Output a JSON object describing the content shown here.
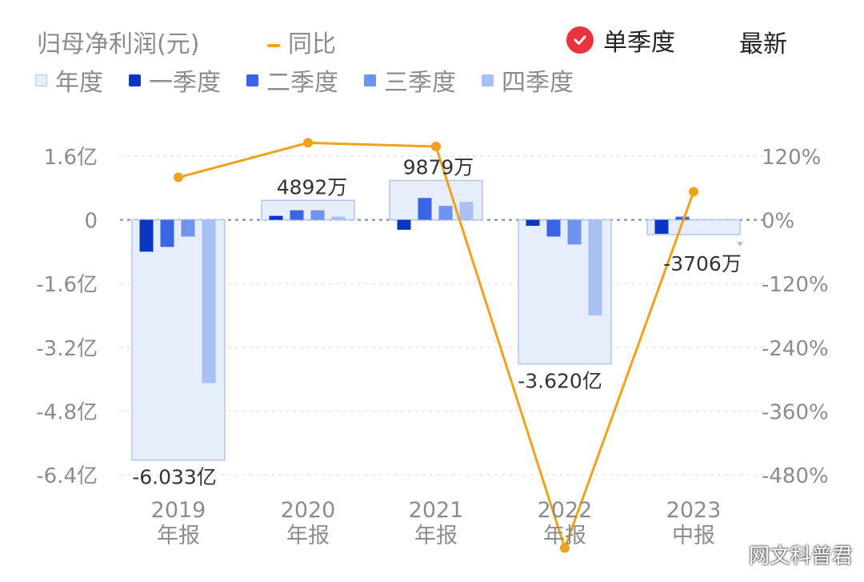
{
  "header": {
    "title": "归母净利润(元)",
    "yoy_legend": "同比",
    "toggle_label": "单季度",
    "latest_label": "最新"
  },
  "legend": [
    {
      "label": "年度",
      "color": "#e6edfb"
    },
    {
      "label": "一季度",
      "color": "#0b35c4"
    },
    {
      "label": "二季度",
      "color": "#3a66e6"
    },
    {
      "label": "三季度",
      "color": "#6f94ef"
    },
    {
      "label": "四季度",
      "color": "#a9c0f5"
    }
  ],
  "watermark": "网文科普君",
  "chart_data": {
    "type": "bar",
    "categories": [
      [
        "2019",
        "年报"
      ],
      [
        "2020",
        "年报"
      ],
      [
        "2021",
        "年报"
      ],
      [
        "2022",
        "年报"
      ],
      [
        "2023",
        "中报"
      ]
    ],
    "annual": {
      "name": "年度",
      "values": [
        -6.033,
        0.4892,
        0.9879,
        -3.62,
        -0.3706
      ],
      "labels": [
        "-6.033亿",
        "4892万",
        "9879万",
        "-3.620亿",
        "-3706万"
      ]
    },
    "quarters": [
      {
        "name": "一季度",
        "values": [
          -0.8,
          0.1,
          -0.25,
          -0.15,
          -0.35
        ]
      },
      {
        "name": "二季度",
        "values": [
          -0.68,
          0.24,
          0.55,
          -0.42,
          0.08
        ]
      },
      {
        "name": "三季度",
        "values": [
          -0.42,
          0.24,
          0.35,
          -0.62,
          null
        ]
      },
      {
        "name": "四季度",
        "values": [
          -4.1,
          0.08,
          0.45,
          -2.4,
          null
        ]
      }
    ],
    "yoy": {
      "name": "同比",
      "values": [
        80,
        145,
        138,
        -618,
        53
      ]
    },
    "y_left": {
      "min": -6.4,
      "max": 1.6,
      "ticks": [
        1.6,
        0,
        -1.6,
        -3.2,
        -4.8,
        -6.4
      ],
      "tick_labels": [
        "1.6亿",
        "0",
        "-1.6亿",
        "-3.2亿",
        "-4.8亿",
        "-6.4亿"
      ]
    },
    "y_right": {
      "min": -480,
      "max": 120,
      "tick_labels": [
        "120%",
        "0%",
        "-120%",
        "-240%",
        "-360%",
        "-480%"
      ]
    },
    "grid": true
  }
}
